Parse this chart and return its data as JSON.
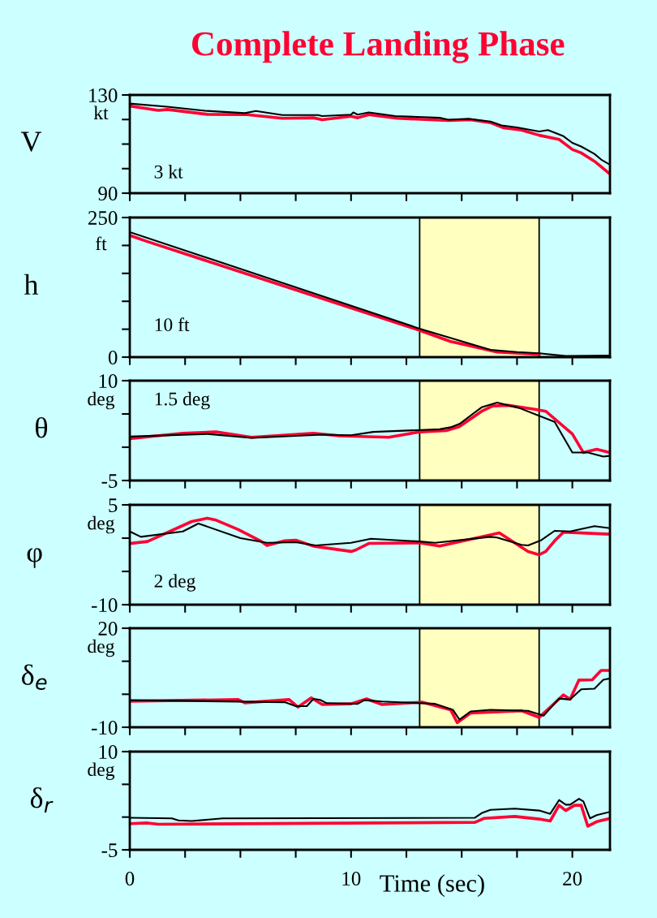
{
  "chart_data": [
    {
      "type": "line",
      "title": "Complete Landing Phase",
      "ylabel": "V",
      "annotations": [
        "kt",
        "3 kt"
      ],
      "xlim": [
        0,
        21.7
      ],
      "ylim": [
        90,
        130
      ],
      "xticks": [
        {
          "value": 0,
          "label": null
        },
        {
          "value": 2.5,
          "label": null
        },
        {
          "value": 5,
          "label": null
        },
        {
          "value": 7.5,
          "label": null
        },
        {
          "value": 10,
          "label": null
        },
        {
          "value": 12.5,
          "label": null
        },
        {
          "value": 15,
          "label": null
        },
        {
          "value": 17.5,
          "label": null
        },
        {
          "value": 20,
          "label": null
        }
      ],
      "yticks": [
        90,
        {
          "value": 100,
          "label": null
        },
        {
          "value": 110,
          "label": null
        },
        {
          "value": 120,
          "label": null
        },
        130
      ],
      "tick_labels": "y",
      "grid": false,
      "legend": false,
      "series": [
        {
          "color": "#000000",
          "x": [
            0,
            1.7,
            3.5,
            5.2,
            5.7,
            6.9,
            8.5,
            8.7,
            10.0,
            10.1,
            10.3,
            10.8,
            12.0,
            14.0,
            14.4,
            15.3,
            16.3,
            16.8,
            17.5,
            18.5,
            18.9,
            19.6,
            20.0,
            20.4,
            21.0,
            21.3,
            21.7
          ],
          "values": [
            126.5,
            125.2,
            123.5,
            122.6,
            123.5,
            121.8,
            121.8,
            121.4,
            122,
            122.9,
            122,
            122.9,
            121.4,
            120.7,
            119.9,
            120.3,
            119.2,
            117.6,
            116.8,
            115.1,
            115.7,
            113.2,
            110.5,
            109,
            106,
            103.7,
            101.6
          ]
        },
        {
          "color": "#ff0033",
          "x": [
            0,
            1.3,
            1.7,
            3.5,
            5.3,
            6.9,
            8.3,
            8.7,
            10.0,
            10.3,
            10.8,
            12.1,
            14.4,
            15.4,
            16.3,
            16.9,
            17.7,
            18.5,
            19.4,
            20.0,
            20.4,
            21.0,
            21.7
          ],
          "values": [
            125.5,
            123.7,
            124.1,
            122.1,
            122,
            120.5,
            120.7,
            119.9,
            121.3,
            120.7,
            122,
            120.5,
            119.6,
            119.9,
            118.7,
            116.6,
            115.7,
            113.6,
            111.9,
            107.8,
            106.4,
            103,
            97.8
          ]
        }
      ]
    },
    {
      "type": "line",
      "ylabel": "h",
      "annotations": [
        "ft",
        "10 ft"
      ],
      "xlim": [
        0,
        21.7
      ],
      "ylim": [
        0,
        250
      ],
      "xticks": [
        {
          "value": 0,
          "label": null
        },
        {
          "value": 2.5,
          "label": null
        },
        {
          "value": 5,
          "label": null
        },
        {
          "value": 7.5,
          "label": null
        },
        {
          "value": 10,
          "label": null
        },
        {
          "value": 12.5,
          "label": null
        },
        {
          "value": 15,
          "label": null
        },
        {
          "value": 17.5,
          "label": null
        },
        {
          "value": 20,
          "label": null
        }
      ],
      "yticks": [
        0,
        {
          "value": 50,
          "label": null
        },
        {
          "value": 100,
          "label": null
        },
        {
          "value": 150,
          "label": null
        },
        {
          "value": 200,
          "label": null
        },
        250
      ],
      "tick_labels": "y",
      "grid": false,
      "legend": false,
      "bands": [
        {
          "axis": "x",
          "from": 13.1,
          "to": 18.5,
          "label": null,
          "color": "#ffffc0"
        }
      ],
      "series": [
        {
          "color": "#000000",
          "x": [
            0,
            13.1,
            16.3,
            17.5,
            18.5,
            19.7,
            21.7
          ],
          "values": [
            224,
            51,
            13,
            9,
            7,
            2,
            3
          ]
        },
        {
          "color": "#ff0033",
          "x": [
            0,
            0.8,
            13.1,
            14.5,
            15.2,
            16.6,
            18.5
          ],
          "values": [
            218,
            207,
            48,
            28,
            22,
            9,
            5
          ]
        }
      ]
    },
    {
      "type": "line",
      "ylabel": "θ",
      "annotations": [
        "deg",
        "1.5 deg"
      ],
      "xlim": [
        0,
        21.7
      ],
      "ylim": [
        -5,
        10
      ],
      "xticks": [
        {
          "value": 0,
          "label": null
        },
        {
          "value": 2.5,
          "label": null
        },
        {
          "value": 5,
          "label": null
        },
        {
          "value": 7.5,
          "label": null
        },
        {
          "value": 10,
          "label": null
        },
        {
          "value": 12.5,
          "label": null
        },
        {
          "value": 15,
          "label": null
        },
        {
          "value": 17.5,
          "label": null
        },
        {
          "value": 20,
          "label": null
        }
      ],
      "yticks": [
        -5,
        {
          "value": 0,
          "label": null
        },
        {
          "value": 5,
          "label": null
        },
        10
      ],
      "tick_labels": "y",
      "grid": false,
      "legend": false,
      "bands": [
        {
          "axis": "x",
          "from": 13.1,
          "to": 18.5,
          "label": null,
          "color": "#ffffc0"
        }
      ],
      "series": [
        {
          "color": "#000000",
          "x": [
            0,
            3.5,
            5.5,
            8.7,
            10.0,
            11.0,
            14.0,
            14.5,
            14.9,
            15.9,
            16.6,
            17.6,
            19.2,
            20.0,
            20.7,
            21.4,
            21.7
          ],
          "values": [
            1.6,
            2,
            1.4,
            1.9,
            1.8,
            2.3,
            2.7,
            3,
            3.5,
            6,
            6.7,
            5.9,
            3.8,
            -0.8,
            -0.8,
            -1.4,
            -1.3
          ]
        },
        {
          "color": "#ff0033",
          "x": [
            0,
            2.4,
            3.9,
            5.5,
            8.3,
            9.5,
            11.7,
            13.1,
            14.3,
            14.9,
            15.9,
            16.4,
            17.1,
            18.3,
            18.8,
            20.0,
            20.5,
            21.1,
            21.7
          ],
          "values": [
            1.3,
            2.1,
            2.3,
            1.5,
            2.1,
            1.7,
            1.5,
            2.3,
            2.5,
            3.1,
            5.4,
            6.2,
            6.3,
            5.7,
            5.4,
            2,
            -0.8,
            -0.3,
            -0.8
          ]
        }
      ]
    },
    {
      "type": "line",
      "ylabel": "φ",
      "annotations": [
        "deg",
        "2 deg"
      ],
      "xlim": [
        0,
        21.7
      ],
      "ylim": [
        -10,
        5
      ],
      "xticks": [
        {
          "value": 0,
          "label": null
        },
        {
          "value": 2.5,
          "label": null
        },
        {
          "value": 5,
          "label": null
        },
        {
          "value": 7.5,
          "label": null
        },
        {
          "value": 10,
          "label": null
        },
        {
          "value": 12.5,
          "label": null
        },
        {
          "value": 15,
          "label": null
        },
        {
          "value": 17.5,
          "label": null
        },
        {
          "value": 20,
          "label": null
        }
      ],
      "yticks": [
        -10,
        {
          "value": -5,
          "label": null
        },
        {
          "value": 0,
          "label": null
        },
        5
      ],
      "tick_labels": "y",
      "grid": false,
      "legend": false,
      "bands": [
        {
          "axis": "x",
          "from": 13.1,
          "to": 18.5,
          "label": null,
          "color": "#ffffc0"
        }
      ],
      "series": [
        {
          "color": "#000000",
          "x": [
            0,
            0.5,
            2.4,
            3.1,
            5.0,
            6.2,
            7.5,
            8.4,
            10.0,
            10.9,
            13.1,
            13.8,
            16.3,
            16.6,
            17.7,
            18.0,
            18.6,
            19.2,
            19.9,
            21.0,
            21.7
          ],
          "values": [
            1,
            0.2,
            1,
            2.2,
            0,
            -0.7,
            -0.6,
            -1.1,
            -0.7,
            -0.1,
            -0.5,
            -0.7,
            0.2,
            0.1,
            -1,
            -1.1,
            -0.3,
            1.1,
            1,
            1.8,
            1.5
          ]
        },
        {
          "color": "#ff0033",
          "x": [
            0,
            0.8,
            2.8,
            3.5,
            3.9,
            4.9,
            5.9,
            6.2,
            7.0,
            7.5,
            8.3,
            10.0,
            10.2,
            10.8,
            13.1,
            14.0,
            16.3,
            16.7,
            18.0,
            18.5,
            18.8,
            19.2,
            19.6,
            21.7
          ],
          "values": [
            -0.8,
            -0.5,
            2.5,
            3,
            2.7,
            1.3,
            -0.4,
            -1.1,
            -0.4,
            -0.3,
            -1.2,
            -2,
            -1.8,
            -0.8,
            -0.7,
            -1.2,
            0.5,
            0.8,
            -2,
            -2.5,
            -2,
            -0.4,
            0.9,
            0.6
          ]
        }
      ]
    },
    {
      "type": "line",
      "ylabel": "δ$_{e}$",
      "annotations": [
        "deg"
      ],
      "xlim": [
        0,
        21.7
      ],
      "ylim": [
        -10,
        20
      ],
      "xticks": [
        {
          "value": 0,
          "label": null
        },
        {
          "value": 2.5,
          "label": null
        },
        {
          "value": 5,
          "label": null
        },
        {
          "value": 7.5,
          "label": null
        },
        {
          "value": 10,
          "label": null
        },
        {
          "value": 12.5,
          "label": null
        },
        {
          "value": 15,
          "label": null
        },
        {
          "value": 17.5,
          "label": null
        },
        {
          "value": 20,
          "label": null
        }
      ],
      "yticks": [
        -10,
        {
          "value": 0,
          "label": null
        },
        {
          "value": 10,
          "label": null
        },
        20
      ],
      "tick_labels": "y",
      "grid": false,
      "legend": false,
      "bands": [
        {
          "axis": "x",
          "from": 13.1,
          "to": 18.5,
          "label": null,
          "color": "#ffffc0"
        }
      ],
      "series": [
        {
          "color": "#000000",
          "x": [
            0,
            7.0,
            7.5,
            8.0,
            8.3,
            8.6,
            8.9,
            10.3,
            10.6,
            11.4,
            13.8,
            14.6,
            14.9,
            15.4,
            16.3,
            18.0,
            18.7,
            19.4,
            19.9,
            20.4,
            21.0,
            21.4,
            21.7
          ],
          "values": [
            -1.8,
            -2.4,
            -3.6,
            -3.6,
            -1.4,
            -1.7,
            -2.7,
            -2.9,
            -1.8,
            -2.2,
            -2.9,
            -4.7,
            -7.7,
            -5.2,
            -4.7,
            -5,
            -6.5,
            -1.3,
            -1.6,
            1.5,
            1.7,
            4.4,
            4.8
          ]
        },
        {
          "color": "#ff0033",
          "x": [
            0,
            4.9,
            5.2,
            7.2,
            7.6,
            8.2,
            8.7,
            10.0,
            10.7,
            11.4,
            13.2,
            14.5,
            14.8,
            15.4,
            17.7,
            18.5,
            19.1,
            19.6,
            19.9,
            20.3,
            20.9,
            21.3,
            21.7
          ],
          "values": [
            -2.1,
            -1.6,
            -2.6,
            -1.6,
            -3.9,
            -1.1,
            -3.1,
            -2.9,
            -1.4,
            -3.1,
            -2.4,
            -4.7,
            -8.6,
            -5.7,
            -5,
            -7,
            -3.3,
            -0.2,
            -1.5,
            4.3,
            4.4,
            7.2,
            7.2
          ]
        }
      ]
    },
    {
      "type": "line",
      "ylabel": "δ$_{r}$",
      "xlabel": "Time (sec)",
      "annotations": [
        "deg"
      ],
      "xlim": [
        0,
        21.7
      ],
      "ylim": [
        -5,
        10
      ],
      "xticks": [
        0,
        {
          "value": 2.5,
          "label": null
        },
        {
          "value": 5,
          "label": null
        },
        {
          "value": 7.5,
          "label": null
        },
        10,
        {
          "value": 12.5,
          "label": null
        },
        {
          "value": 15,
          "label": null
        },
        {
          "value": 17.5,
          "label": null
        },
        20
      ],
      "yticks": [
        -5,
        {
          "value": 0,
          "label": null
        },
        {
          "value": 5,
          "label": null
        },
        10
      ],
      "grid": false,
      "legend": false,
      "series": [
        {
          "color": "#000000",
          "x": [
            0,
            1.9,
            2.2,
            2.8,
            4.2,
            15.6,
            15.9,
            16.3,
            17.4,
            18.5,
            19.0,
            19.4,
            19.7,
            19.9,
            20.3,
            20.5,
            20.8,
            21.1,
            21.7
          ],
          "values": [
            -0.1,
            -0.2,
            -0.5,
            -0.6,
            -0.2,
            -0.1,
            0.6,
            1.1,
            1.3,
            1,
            0.5,
            2.6,
            1.9,
            1.9,
            2.8,
            2.4,
            -0.2,
            0.3,
            0.8
          ]
        },
        {
          "color": "#ff0033",
          "x": [
            0,
            0.8,
            1.3,
            15.6,
            16.0,
            17.4,
            18.5,
            19.0,
            19.4,
            19.7,
            20.1,
            20.4,
            20.7,
            21.1,
            21.7
          ],
          "values": [
            -1,
            -0.9,
            -1.1,
            -0.8,
            -0.2,
            0.1,
            -0.3,
            -0.6,
            1.8,
            1,
            1.8,
            1.8,
            -1.4,
            -0.7,
            -0.2
          ]
        }
      ]
    }
  ]
}
